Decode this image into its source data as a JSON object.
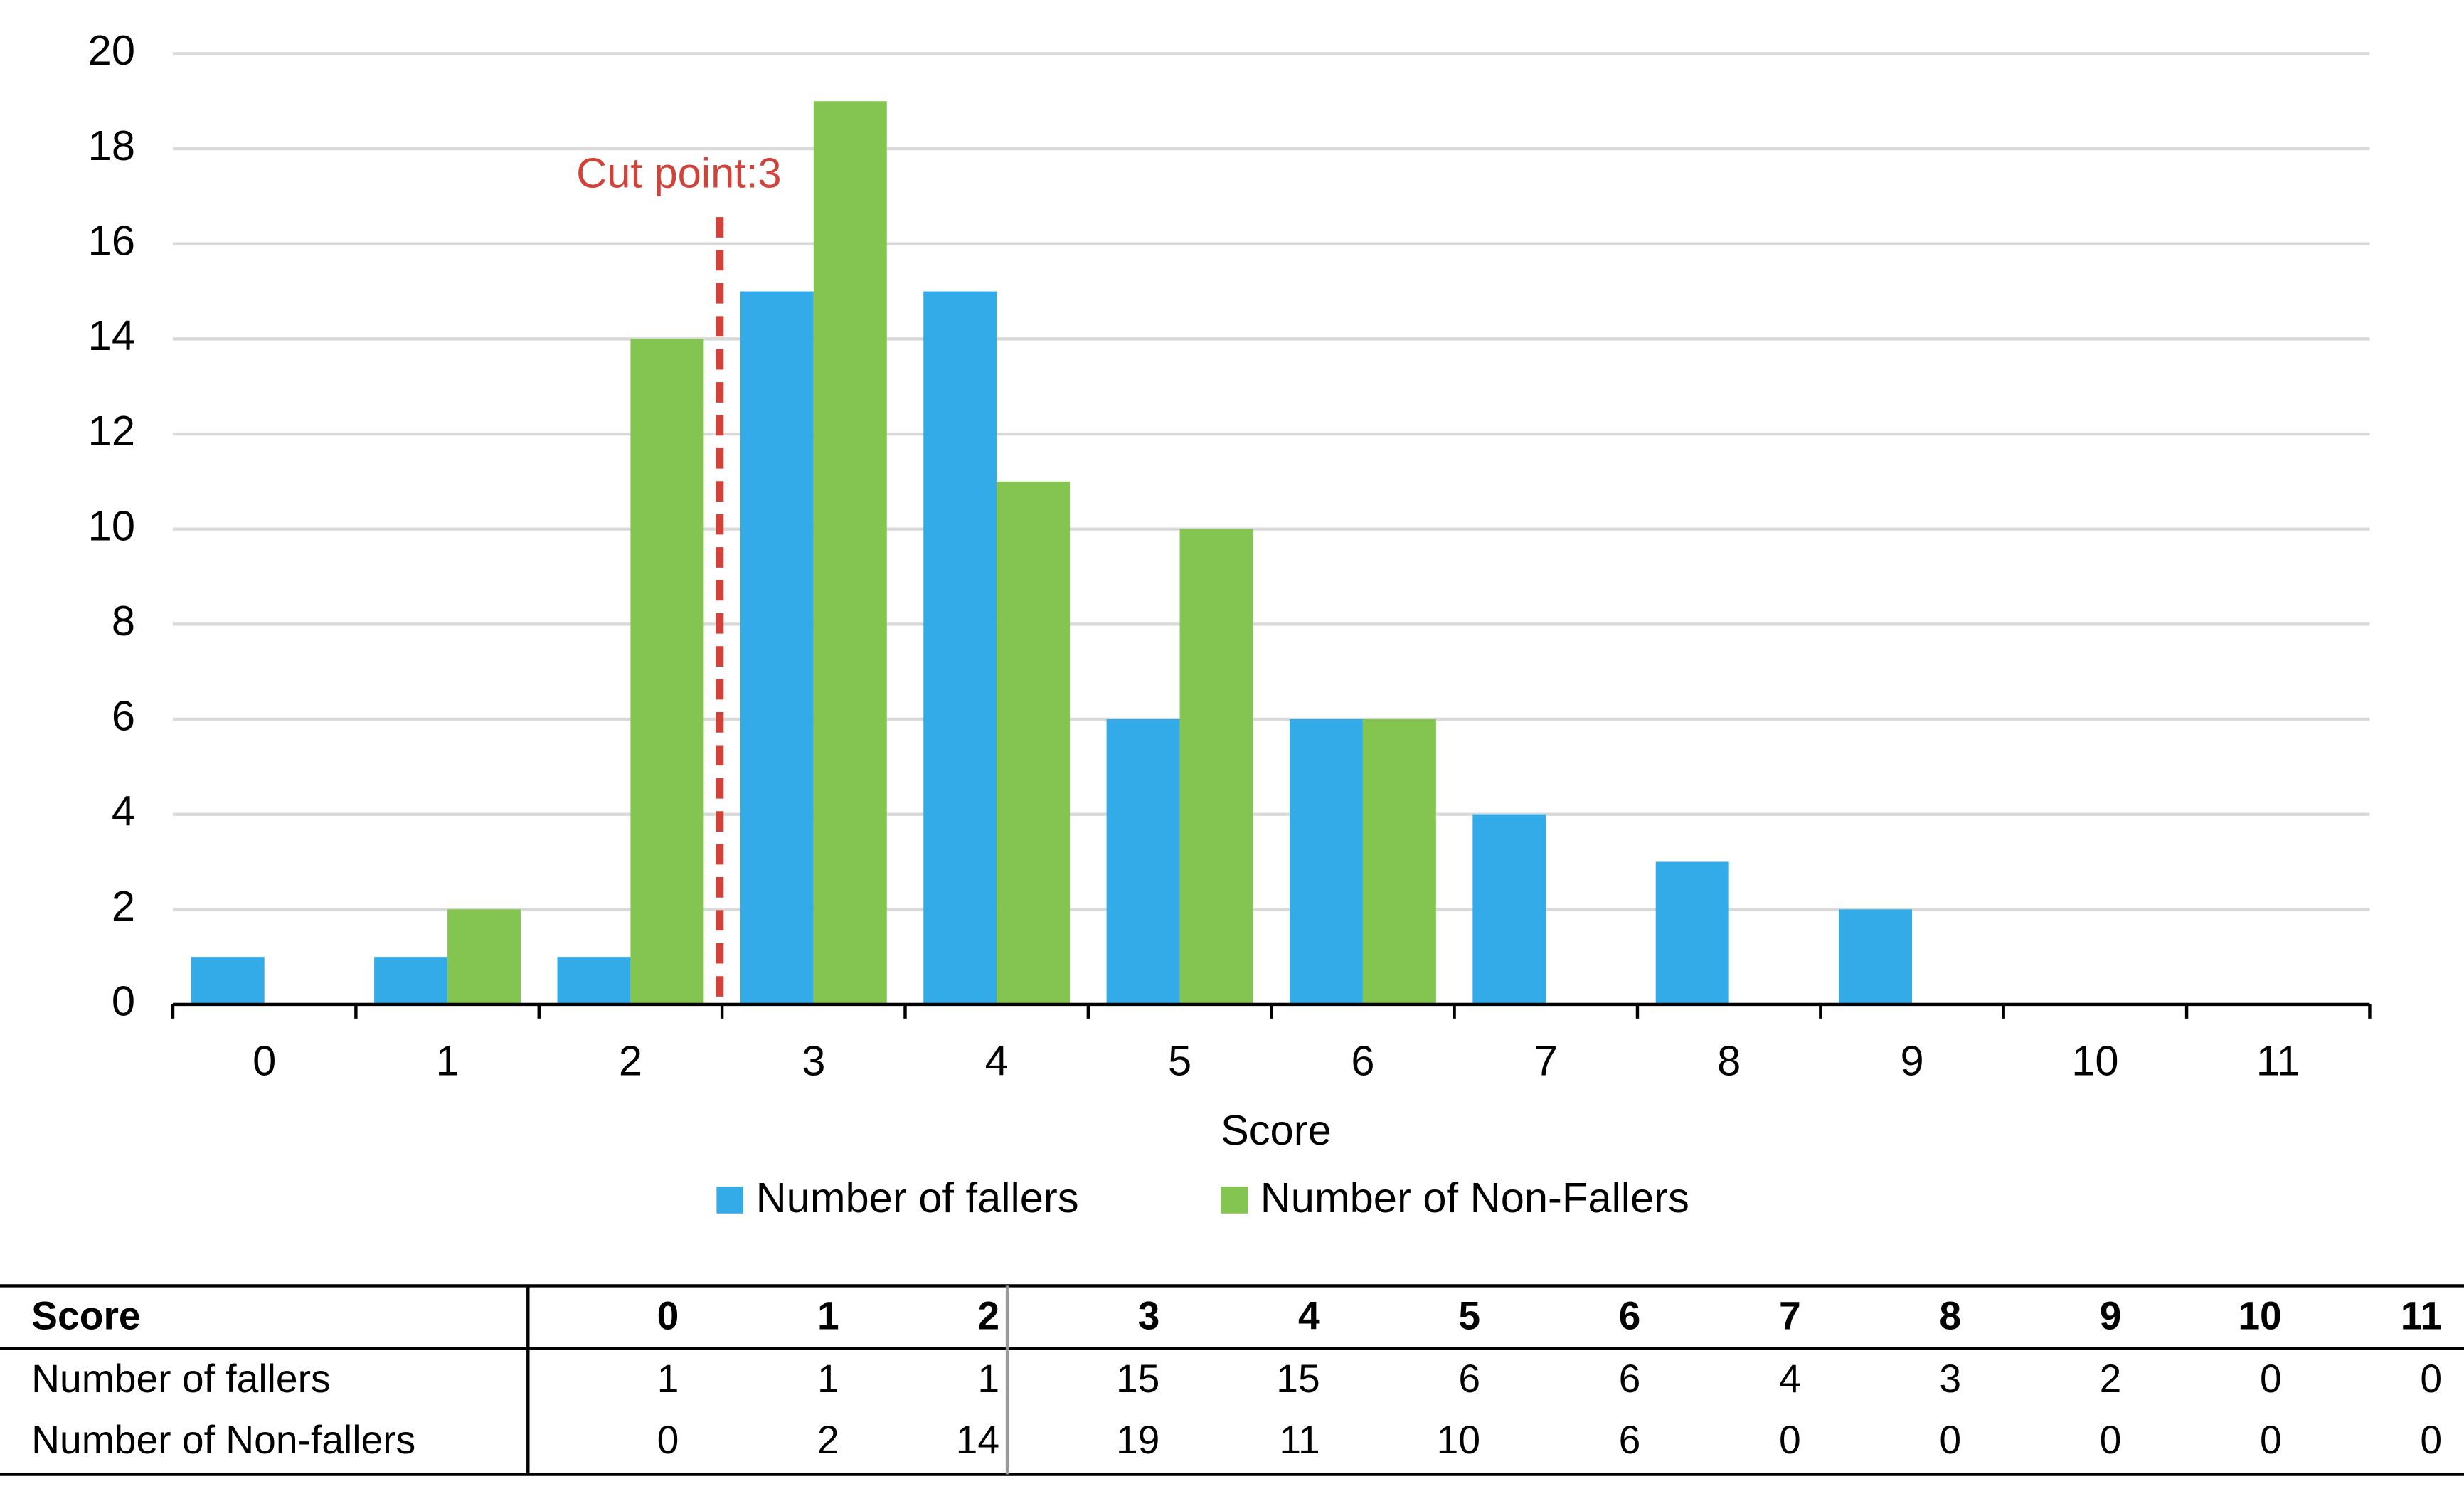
{
  "chart_data": {
    "type": "bar",
    "categories": [
      "0",
      "1",
      "2",
      "3",
      "4",
      "5",
      "6",
      "7",
      "8",
      "9",
      "10",
      "11"
    ],
    "series": [
      {
        "name": "Number of fallers",
        "color": "#33abe8",
        "values": [
          1,
          1,
          1,
          15,
          15,
          6,
          6,
          4,
          3,
          2,
          0,
          0
        ]
      },
      {
        "name": "Number of Non-Fallers",
        "color": "#84c450",
        "values": [
          0,
          2,
          14,
          19,
          11,
          10,
          6,
          0,
          0,
          0,
          0,
          0
        ]
      }
    ],
    "ylim": [
      0,
      20
    ],
    "yticks": [
      0,
      2,
      4,
      6,
      8,
      10,
      12,
      14,
      16,
      18,
      20
    ],
    "grid": true,
    "xlabel": "Score",
    "annotation": "Cut point:3",
    "legend": "bottom"
  },
  "table": {
    "header": [
      "Score",
      "0",
      "1",
      "2",
      "3",
      "4",
      "5",
      "6",
      "7",
      "8",
      "9",
      "10",
      "11"
    ],
    "rows": [
      [
        "Number of fallers",
        1,
        1,
        1,
        15,
        15,
        6,
        6,
        4,
        3,
        2,
        0,
        0
      ],
      [
        "Number of Non-fallers",
        0,
        2,
        14,
        19,
        11,
        10,
        6,
        0,
        0,
        0,
        0,
        0
      ]
    ]
  }
}
